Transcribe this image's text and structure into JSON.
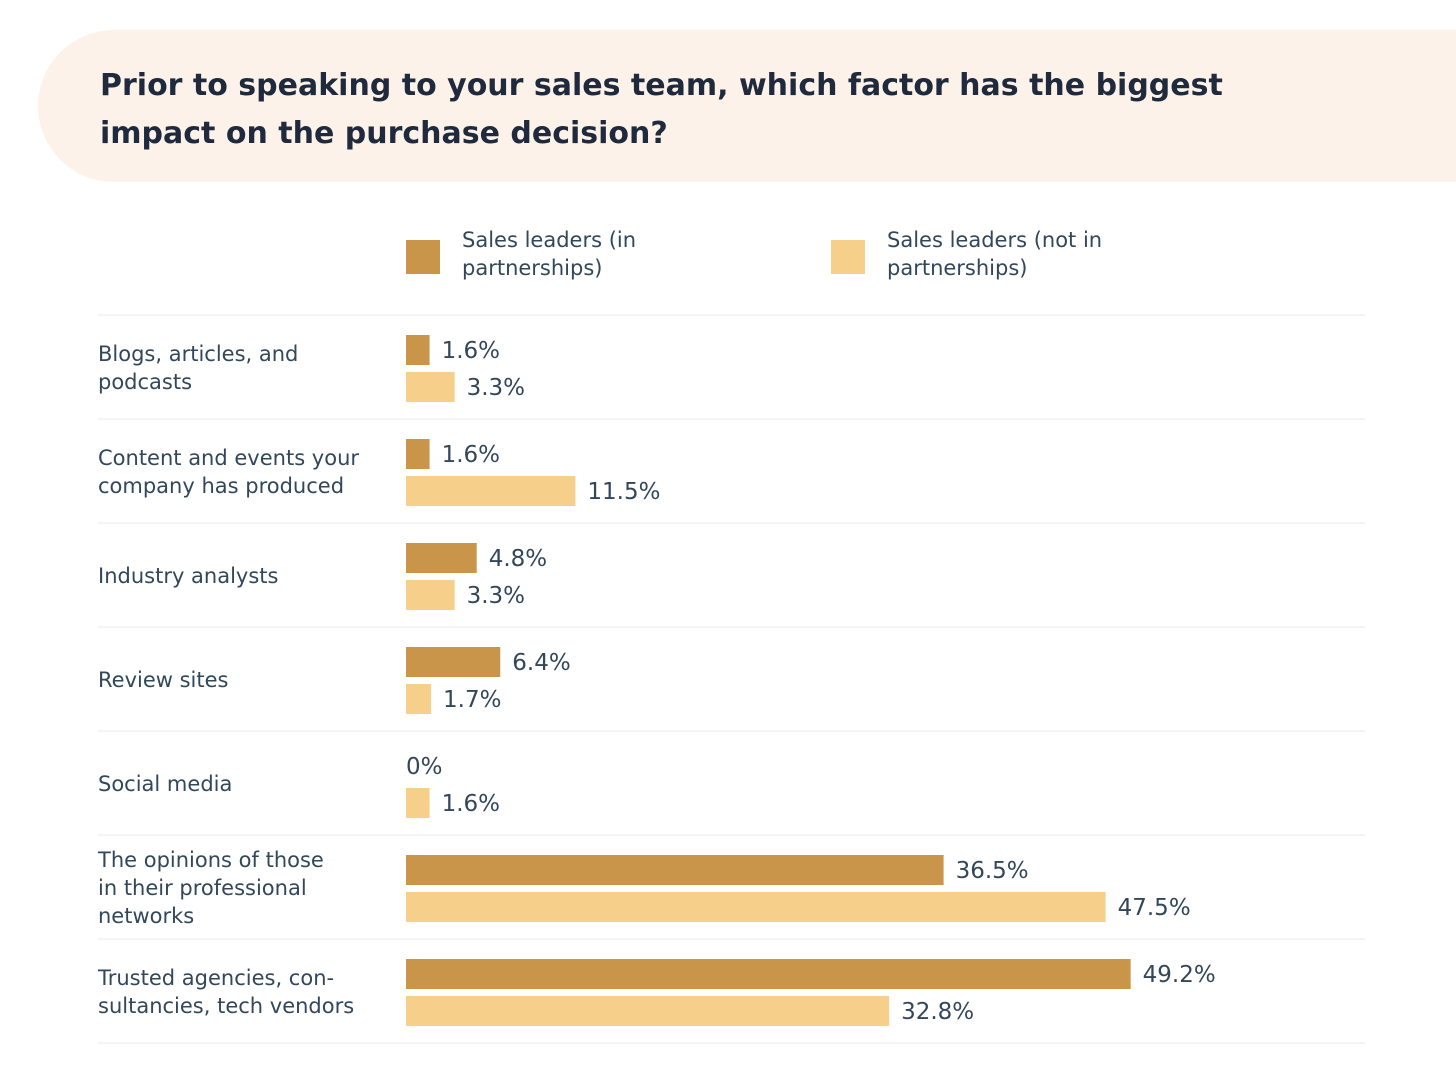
{
  "title": "Prior to speaking to your sales team, which factor has the biggest impact on the purchase decision?",
  "colors": {
    "title_band": "#fcf2ea",
    "sales_leaders_in_partnerships": "#c8954a",
    "sales_leaders_not_in_partnerships": "#f6d08a",
    "divider": "#e5e8ec",
    "text": "#33475b"
  },
  "legend": [
    {
      "label": "Sales leaders (in partnerships)",
      "color": "#c8954a"
    },
    {
      "label": "Sales leaders (not in partnerships)",
      "color": "#f6d08a"
    }
  ],
  "chart_data": {
    "type": "bar",
    "orientation": "horizontal",
    "title": "Prior to speaking to your sales team, which factor has the biggest impact on the purchase decision?",
    "xlabel": "",
    "ylabel": "",
    "grid": false,
    "legend_position": "top",
    "categories": [
      [
        "Blogs, articles, and",
        "podcasts"
      ],
      [
        "Content and events your",
        "company has produced"
      ],
      [
        "Industry analysts"
      ],
      [
        "Review sites"
      ],
      [
        "Social media"
      ],
      [
        "The opinions of those",
        "in their professional",
        "networks"
      ],
      [
        "Trusted agencies, con-",
        "sultancies, tech vendors"
      ]
    ],
    "series": [
      {
        "name": "Sales leaders (in partnerships)",
        "color": "#c8954a",
        "values": [
          1.6,
          1.6,
          4.8,
          6.4,
          0,
          36.5,
          49.2
        ],
        "labels": [
          "1.6%",
          "1.6%",
          "4.8%",
          "6.4%",
          "0%",
          "36.5%",
          "49.2%"
        ]
      },
      {
        "name": "Sales leaders (not in partnerships)",
        "color": "#f6d08a",
        "values": [
          3.3,
          11.5,
          3.3,
          1.7,
          1.6,
          47.5,
          32.8
        ],
        "labels": [
          "3.3%",
          "11.5%",
          "3.3%",
          "1.7%",
          "1.6%",
          "47.5%",
          "32.8%"
        ]
      }
    ],
    "xlim": [
      0,
      50
    ]
  }
}
